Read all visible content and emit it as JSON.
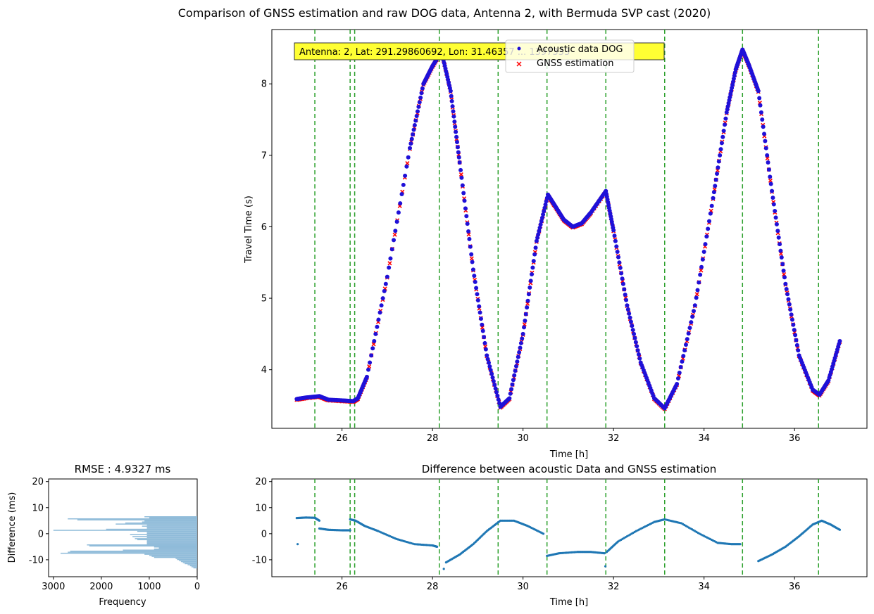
{
  "figure": {
    "suptitle": "Comparison of GNSS estimation and raw DOG data, Antenna 2, with Bermuda SVP cast (2020)"
  },
  "colors": {
    "acoustic": "#1f10d8",
    "gnss": "#ff0000",
    "vlines": "#2ca02c",
    "diff_points": "#1f77b4",
    "hist_bars": "#8fbbd9",
    "annotation_box": "#ffff33"
  },
  "chart_data": [
    {
      "id": "main",
      "type": "scatter",
      "title": "",
      "xlabel": "Time [h]",
      "ylabel": "Travel Time (s)",
      "xlim": [
        24.45,
        37.6
      ],
      "ylim": [
        3.18,
        8.76
      ],
      "xticks": [
        26,
        28,
        30,
        32,
        34,
        36
      ],
      "yticks": [
        4,
        5,
        6,
        7,
        8
      ],
      "annotation": "Antenna: 2, Lat: 291.29860692, Lon: 31.46357 ... 1397333",
      "legend": {
        "location": "upper-center",
        "entries": [
          {
            "label": "Acoustic data DOG",
            "marker": "circle",
            "color": "#1f10d8"
          },
          {
            "label": "GNSS estimation",
            "marker": "x",
            "color": "#ff0000"
          }
        ]
      },
      "vlines": [
        25.4,
        26.18,
        26.28,
        28.15,
        29.45,
        30.53,
        31.83,
        33.13,
        34.85,
        36.53
      ],
      "series": [
        {
          "name": "Acoustic data DOG",
          "x": [
            25.0,
            25.2,
            25.5,
            25.7,
            26.0,
            26.25,
            26.35,
            26.55,
            27.0,
            27.5,
            27.8,
            28.0,
            28.2,
            28.4,
            28.6,
            28.9,
            29.2,
            29.5,
            29.7,
            30.0,
            30.3,
            30.55,
            30.7,
            30.9,
            31.1,
            31.3,
            31.5,
            31.83,
            32.0,
            32.3,
            32.6,
            32.9,
            33.13,
            33.4,
            33.8,
            34.2,
            34.5,
            34.7,
            34.85,
            35.0,
            35.2,
            35.5,
            35.8,
            36.1,
            36.4,
            36.55,
            36.75,
            37.0
          ],
          "y": [
            3.59,
            3.61,
            3.63,
            3.58,
            3.57,
            3.56,
            3.6,
            3.9,
            5.3,
            7.1,
            8.0,
            8.25,
            8.45,
            7.9,
            6.9,
            5.4,
            4.2,
            3.48,
            3.6,
            4.5,
            5.8,
            6.45,
            6.3,
            6.1,
            6.0,
            6.05,
            6.2,
            6.5,
            5.95,
            4.9,
            4.1,
            3.6,
            3.46,
            3.8,
            4.9,
            6.4,
            7.6,
            8.2,
            8.48,
            8.25,
            7.9,
            6.5,
            5.2,
            4.2,
            3.72,
            3.65,
            3.85,
            4.4
          ]
        },
        {
          "name": "GNSS estimation",
          "x": [
            25.0,
            25.2,
            25.5,
            25.7,
            26.0,
            26.25,
            26.35,
            26.55,
            27.0,
            27.5,
            27.8,
            28.0,
            28.2,
            28.4,
            28.6,
            28.9,
            29.2,
            29.5,
            29.7,
            30.0,
            30.3,
            30.55,
            30.7,
            30.9,
            31.1,
            31.3,
            31.5,
            31.83,
            32.0,
            32.3,
            32.6,
            32.9,
            33.13,
            33.4,
            33.8,
            34.2,
            34.5,
            34.7,
            34.85,
            35.0,
            35.2,
            35.5,
            35.8,
            36.1,
            36.4,
            36.55,
            36.75,
            37.0
          ],
          "y": [
            3.58,
            3.6,
            3.62,
            3.57,
            3.56,
            3.55,
            3.59,
            3.89,
            5.29,
            7.09,
            7.99,
            8.24,
            8.45,
            7.89,
            6.9,
            5.39,
            4.19,
            3.47,
            3.59,
            4.49,
            5.79,
            6.44,
            6.29,
            6.09,
            5.99,
            6.04,
            6.19,
            6.49,
            5.94,
            4.89,
            4.09,
            3.59,
            3.45,
            3.79,
            4.89,
            6.39,
            7.59,
            8.19,
            8.47,
            8.24,
            7.89,
            6.49,
            5.19,
            4.19,
            3.71,
            3.64,
            3.84,
            4.39
          ]
        }
      ]
    },
    {
      "id": "histogram",
      "type": "bar",
      "orientation": "horizontal",
      "title": "RMSE : 4.9327 ms",
      "xlabel": "Frequency",
      "ylabel": "Difference (ms)",
      "xlim": [
        3100,
        0
      ],
      "ylim": [
        -16.5,
        21
      ],
      "xticks": [
        3000,
        2000,
        1000,
        0
      ],
      "yticks": [
        -10,
        0,
        10,
        20
      ],
      "bin_width": 0.4,
      "bins": [
        {
          "y": 6.5,
          "count": 1100
        },
        {
          "y": 6.1,
          "count": 1000
        },
        {
          "y": 5.7,
          "count": 2700
        },
        {
          "y": 5.3,
          "count": 2500
        },
        {
          "y": 4.9,
          "count": 1100
        },
        {
          "y": 4.5,
          "count": 1150
        },
        {
          "y": 4.1,
          "count": 1500
        },
        {
          "y": 3.7,
          "count": 1700
        },
        {
          "y": 3.3,
          "count": 1050
        },
        {
          "y": 2.9,
          "count": 1150
        },
        {
          "y": 2.5,
          "count": 1050
        },
        {
          "y": 2.1,
          "count": 1050
        },
        {
          "y": 1.7,
          "count": 1900
        },
        {
          "y": 1.3,
          "count": 3000
        },
        {
          "y": 0.9,
          "count": 1250
        },
        {
          "y": 0.5,
          "count": 1050
        },
        {
          "y": 0.1,
          "count": 1050
        },
        {
          "y": -0.3,
          "count": 1400
        },
        {
          "y": -0.7,
          "count": 1050
        },
        {
          "y": -1.1,
          "count": 1350
        },
        {
          "y": -1.5,
          "count": 1050
        },
        {
          "y": -1.9,
          "count": 1300
        },
        {
          "y": -2.3,
          "count": 1250
        },
        {
          "y": -2.7,
          "count": 1050
        },
        {
          "y": -3.1,
          "count": 1050
        },
        {
          "y": -3.5,
          "count": 1050
        },
        {
          "y": -3.9,
          "count": 1050
        },
        {
          "y": -4.3,
          "count": 2300
        },
        {
          "y": -4.7,
          "count": 2250
        },
        {
          "y": -5.1,
          "count": 900
        },
        {
          "y": -5.5,
          "count": 800
        },
        {
          "y": -5.9,
          "count": 900
        },
        {
          "y": -6.3,
          "count": 1550
        },
        {
          "y": -6.7,
          "count": 2650
        },
        {
          "y": -7.1,
          "count": 2700
        },
        {
          "y": -7.5,
          "count": 2850
        },
        {
          "y": -7.9,
          "count": 1100
        },
        {
          "y": -8.3,
          "count": 1000
        },
        {
          "y": -8.7,
          "count": 950
        },
        {
          "y": -9.1,
          "count": 900
        },
        {
          "y": -9.5,
          "count": 450
        },
        {
          "y": -9.9,
          "count": 420
        },
        {
          "y": -10.3,
          "count": 380
        },
        {
          "y": -10.7,
          "count": 340
        },
        {
          "y": -11.1,
          "count": 300
        },
        {
          "y": -11.5,
          "count": 260
        },
        {
          "y": -11.9,
          "count": 200
        },
        {
          "y": -12.3,
          "count": 150
        },
        {
          "y": -12.7,
          "count": 120
        },
        {
          "y": -13.1,
          "count": 80
        }
      ]
    },
    {
      "id": "difference",
      "type": "scatter",
      "title": "Difference between acoustic Data and GNSS estimation",
      "xlabel": "Time [h]",
      "ylabel": "",
      "xlim": [
        24.45,
        37.6
      ],
      "ylim": [
        -16.5,
        21
      ],
      "xticks": [
        26,
        28,
        30,
        32,
        34,
        36
      ],
      "yticks": [
        -10,
        0,
        10,
        20
      ],
      "vlines": [
        25.4,
        26.18,
        26.28,
        28.15,
        29.45,
        30.53,
        31.83,
        33.13,
        34.85,
        36.53
      ],
      "segments": [
        {
          "x": [
            25.0,
            25.2,
            25.4,
            25.5
          ],
          "y": [
            6.0,
            6.2,
            6.1,
            5.0
          ]
        },
        {
          "x": [
            25.5,
            25.7,
            26.0,
            26.18
          ],
          "y": [
            2.0,
            1.5,
            1.3,
            1.3
          ]
        },
        {
          "x": [
            26.18,
            26.3,
            26.5,
            26.8,
            27.2,
            27.6,
            28.0,
            28.1
          ],
          "y": [
            5.5,
            5.0,
            3.0,
            1.0,
            -2.0,
            -4.0,
            -4.5,
            -5.0
          ]
        },
        {
          "x": [
            28.3,
            28.6,
            28.9,
            29.2,
            29.5,
            29.8,
            30.1,
            30.45
          ],
          "y": [
            -11.0,
            -8.0,
            -4.0,
            1.0,
            5.0,
            5.0,
            3.0,
            0.0
          ]
        },
        {
          "x": [
            30.53,
            30.8,
            31.2,
            31.5,
            31.8
          ],
          "y": [
            -8.5,
            -7.5,
            -7.0,
            -7.0,
            -7.5
          ]
        },
        {
          "x": [
            31.85,
            32.1,
            32.5,
            32.9,
            33.13,
            33.5,
            33.9,
            34.3,
            34.6,
            34.8
          ],
          "y": [
            -7.0,
            -3.0,
            1.0,
            4.5,
            5.5,
            4.0,
            0.0,
            -3.5,
            -4.0,
            -4.0
          ]
        },
        {
          "x": [
            35.2,
            35.5,
            35.8,
            36.1,
            36.4,
            36.6,
            36.8,
            37.0
          ],
          "y": [
            -10.5,
            -8.0,
            -5.0,
            -1.0,
            3.5,
            5.0,
            3.5,
            1.5
          ]
        }
      ],
      "outliers": [
        {
          "x": 25.02,
          "y": -4.0
        },
        {
          "x": 28.25,
          "y": -13.5
        },
        {
          "x": 31.82,
          "y": -12.5
        }
      ]
    }
  ]
}
